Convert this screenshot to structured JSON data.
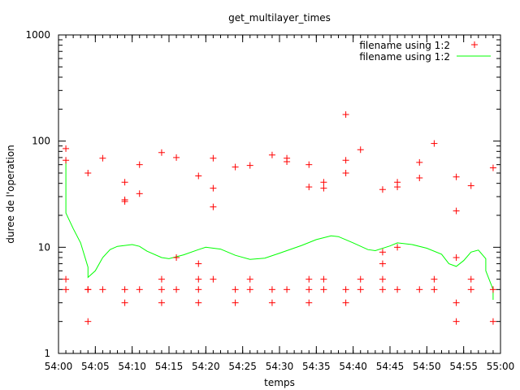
{
  "chart_data": {
    "type": "scatter",
    "title": "get_multilayer_times",
    "xlabel": "temps",
    "ylabel": "duree de l'operation",
    "y_scale": "log",
    "ylim": [
      1,
      1000
    ],
    "xlim": [
      "54:00",
      "55:00"
    ],
    "x_ticks": [
      "54:00",
      "54:05",
      "54:10",
      "54:15",
      "54:20",
      "54:25",
      "54:30",
      "54:35",
      "54:40",
      "54:45",
      "54:50",
      "54:55",
      "55:00"
    ],
    "y_ticks": [
      "1",
      "10",
      "100",
      "1000"
    ],
    "grid": false,
    "legend_position": "top-right",
    "colors": {
      "points": "#ff0000",
      "line": "#00ff00",
      "axis": "#000000"
    },
    "series": [
      {
        "name": "filename using 1:2",
        "style": "points",
        "points": [
          [
            "54:01",
            85
          ],
          [
            "54:01",
            66
          ],
          [
            "54:01",
            5
          ],
          [
            "54:01",
            4
          ],
          [
            "54:04",
            50
          ],
          [
            "54:04",
            4
          ],
          [
            "54:04",
            4
          ],
          [
            "54:04",
            2
          ],
          [
            "54:06",
            69
          ],
          [
            "54:06",
            4
          ],
          [
            "54:09",
            41
          ],
          [
            "54:09",
            28
          ],
          [
            "54:09",
            27
          ],
          [
            "54:09",
            4
          ],
          [
            "54:09",
            3
          ],
          [
            "54:11",
            60
          ],
          [
            "54:11",
            32
          ],
          [
            "54:11",
            4
          ],
          [
            "54:14",
            78
          ],
          [
            "54:14",
            5
          ],
          [
            "54:14",
            4
          ],
          [
            "54:14",
            3
          ],
          [
            "54:16",
            70
          ],
          [
            "54:16",
            8
          ],
          [
            "54:16",
            4
          ],
          [
            "54:19",
            47
          ],
          [
            "54:19",
            7
          ],
          [
            "54:19",
            5
          ],
          [
            "54:19",
            4
          ],
          [
            "54:19",
            3
          ],
          [
            "54:21",
            69
          ],
          [
            "54:21",
            36
          ],
          [
            "54:21",
            24
          ],
          [
            "54:21",
            5
          ],
          [
            "54:24",
            57
          ],
          [
            "54:24",
            4
          ],
          [
            "54:24",
            3
          ],
          [
            "54:26",
            59
          ],
          [
            "54:26",
            5
          ],
          [
            "54:26",
            4
          ],
          [
            "54:29",
            74
          ],
          [
            "54:29",
            4
          ],
          [
            "54:29",
            3
          ],
          [
            "54:31",
            69
          ],
          [
            "54:31",
            64
          ],
          [
            "54:31",
            4
          ],
          [
            "54:34",
            60
          ],
          [
            "54:34",
            37
          ],
          [
            "54:34",
            5
          ],
          [
            "54:34",
            4
          ],
          [
            "54:34",
            3
          ],
          [
            "54:36",
            41
          ],
          [
            "54:36",
            36
          ],
          [
            "54:36",
            5
          ],
          [
            "54:36",
            4
          ],
          [
            "54:39",
            178
          ],
          [
            "54:39",
            66
          ],
          [
            "54:39",
            50
          ],
          [
            "54:39",
            4
          ],
          [
            "54:39",
            3
          ],
          [
            "54:41",
            83
          ],
          [
            "54:41",
            5
          ],
          [
            "54:41",
            4
          ],
          [
            "54:44",
            35
          ],
          [
            "54:44",
            9
          ],
          [
            "54:44",
            7
          ],
          [
            "54:44",
            5
          ],
          [
            "54:44",
            4
          ],
          [
            "54:46",
            41
          ],
          [
            "54:46",
            37
          ],
          [
            "54:46",
            10
          ],
          [
            "54:46",
            4
          ],
          [
            "54:49",
            63
          ],
          [
            "54:49",
            45
          ],
          [
            "54:49",
            4
          ],
          [
            "54:51",
            95
          ],
          [
            "54:51",
            5
          ],
          [
            "54:51",
            4
          ],
          [
            "54:54",
            46
          ],
          [
            "54:54",
            22
          ],
          [
            "54:54",
            8
          ],
          [
            "54:54",
            3
          ],
          [
            "54:54",
            2
          ],
          [
            "54:56",
            38
          ],
          [
            "54:56",
            5
          ],
          [
            "54:56",
            4
          ],
          [
            "54:59",
            56
          ],
          [
            "54:59",
            4
          ],
          [
            "54:59",
            2
          ]
        ]
      },
      {
        "name": "filename using 1:2",
        "style": "line",
        "points": [
          [
            "54:01",
            66
          ],
          [
            "54:01",
            21
          ],
          [
            "54:02",
            15
          ],
          [
            "54:03",
            11
          ],
          [
            "54:04",
            6.5
          ],
          [
            "54:04",
            5.2
          ],
          [
            "54:05",
            6
          ],
          [
            "54:06",
            8
          ],
          [
            "54:07",
            9.5
          ],
          [
            "54:08",
            10.2
          ],
          [
            "54:10",
            10.6
          ],
          [
            "54:11",
            10.2
          ],
          [
            "54:12",
            9.2
          ],
          [
            "54:14",
            8
          ],
          [
            "54:15",
            7.8
          ],
          [
            "54:17",
            8.5
          ],
          [
            "54:19",
            9.5
          ],
          [
            "54:20",
            10
          ],
          [
            "54:22",
            9.6
          ],
          [
            "54:24",
            8.4
          ],
          [
            "54:26",
            7.7
          ],
          [
            "54:28",
            7.9
          ],
          [
            "54:30",
            8.8
          ],
          [
            "54:33",
            10.4
          ],
          [
            "54:35",
            11.8
          ],
          [
            "54:37",
            12.8
          ],
          [
            "54:38",
            12.6
          ],
          [
            "54:40",
            11
          ],
          [
            "54:42",
            9.5
          ],
          [
            "54:43",
            9.3
          ],
          [
            "54:45",
            10.3
          ],
          [
            "54:46",
            11
          ],
          [
            "54:48",
            10.6
          ],
          [
            "54:50",
            9.8
          ],
          [
            "54:52",
            8.6
          ],
          [
            "54:53",
            7
          ],
          [
            "54:54",
            6.6
          ],
          [
            "54:55",
            7.5
          ],
          [
            "54:56",
            9
          ],
          [
            "54:57",
            9.4
          ],
          [
            "54:58",
            7.8
          ],
          [
            "54:58",
            6
          ],
          [
            "54:59",
            4
          ],
          [
            "54:59",
            3.2
          ]
        ]
      }
    ]
  }
}
